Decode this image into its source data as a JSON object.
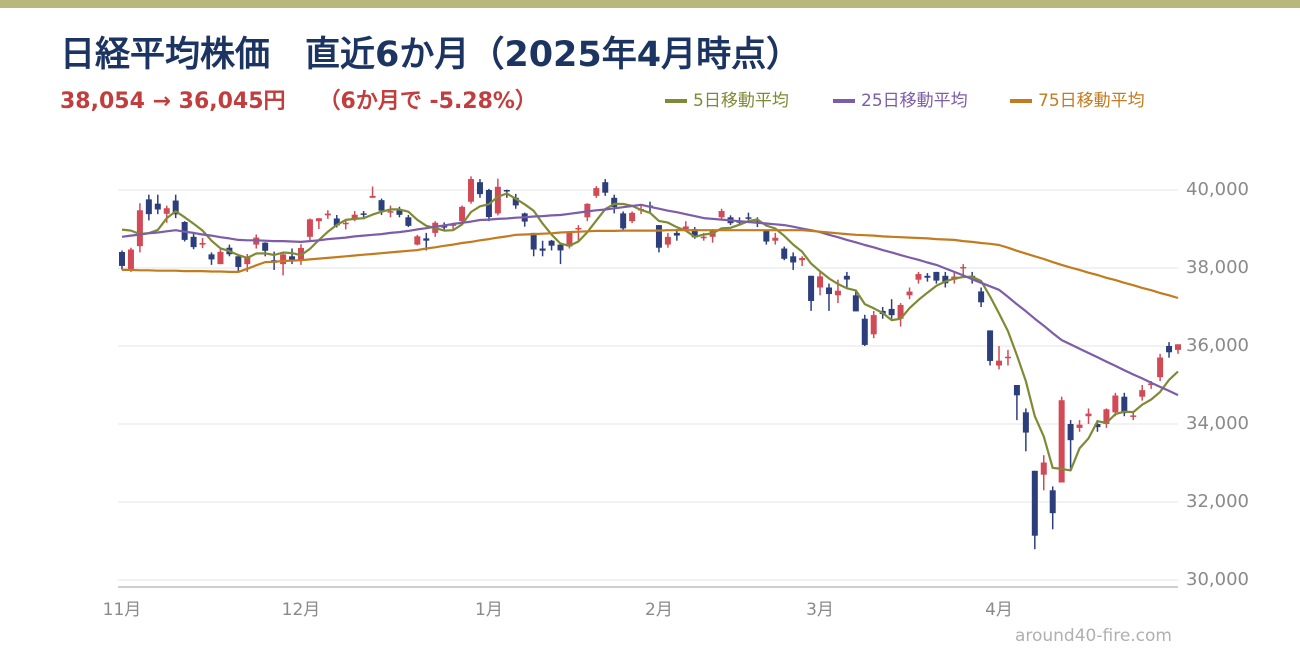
{
  "chart_data": {
    "type": "candlestick",
    "title": "日経平均株価　直近6か月（2025年4月時点）",
    "subtitle": "38,054 → 36,045円　　（6か月で -5.28%）",
    "source": "around40-fire.com",
    "categories": [
      "11月",
      null,
      null,
      null,
      null,
      null,
      null,
      null,
      null,
      null,
      null,
      null,
      null,
      null,
      null,
      null,
      null,
      null,
      null,
      null,
      "12月",
      null,
      null,
      null,
      null,
      null,
      null,
      null,
      null,
      null,
      null,
      null,
      null,
      null,
      null,
      null,
      null,
      null,
      null,
      null,
      null,
      "1月",
      null,
      null,
      null,
      null,
      null,
      null,
      null,
      null,
      null,
      null,
      null,
      null,
      null,
      null,
      null,
      null,
      null,
      null,
      "2月",
      null,
      null,
      null,
      null,
      null,
      null,
      null,
      null,
      null,
      null,
      null,
      null,
      null,
      null,
      null,
      null,
      null,
      "3月",
      null,
      null,
      null,
      null,
      null,
      null,
      null,
      null,
      null,
      null,
      null,
      null,
      null,
      null,
      null,
      null,
      null,
      null,
      null,
      "4月",
      null,
      null,
      null,
      null,
      null,
      null,
      null,
      null,
      null,
      null,
      null,
      null,
      null,
      null,
      null,
      null,
      null,
      null,
      null,
      null
    ],
    "open": [
      38410,
      37950,
      38560,
      39760,
      39650,
      39390,
      39730,
      39180,
      38800,
      38600,
      38350,
      38100,
      38520,
      38300,
      38100,
      38600,
      38650,
      38200,
      38100,
      38300,
      38180,
      38800,
      39200,
      39350,
      39270,
      39140,
      39250,
      39400,
      39800,
      39740,
      39450,
      39500,
      39300,
      38600,
      38760,
      38900,
      39100,
      39080,
      39200,
      39700,
      40200,
      40000,
      39400,
      40000,
      39800,
      39400,
      38900,
      38500,
      38700,
      38600,
      38550,
      39000,
      39300,
      39850,
      40200,
      39800,
      39400,
      39200,
      39500,
      39600,
      39100,
      38600,
      38900,
      39000,
      39000,
      38800,
      38800,
      39300,
      39300,
      39200,
      39300,
      39200,
      38950,
      38700,
      38500,
      38300,
      38200,
      37800,
      37500,
      37500,
      37300,
      37800,
      37300,
      36700,
      36300,
      36900,
      36950,
      36700,
      37300,
      37700,
      37800,
      37900,
      37800,
      37700,
      38000,
      37800,
      37400,
      36400,
      35500,
      35700,
      35000,
      34300,
      32800,
      32700,
      32300,
      32500,
      34000,
      33900,
      34200,
      34000,
      34000,
      34300,
      34700,
      34200,
      34700,
      35000,
      35200,
      36000,
      35900
    ],
    "high": [
      38450,
      38520,
      39660,
      39880,
      39880,
      39600,
      39880,
      39200,
      38900,
      38770,
      38400,
      38490,
      38600,
      38360,
      38360,
      38860,
      38660,
      38420,
      38420,
      38500,
      38610,
      39270,
      39280,
      39480,
      39360,
      39250,
      39460,
      39460,
      40090,
      39780,
      39600,
      39570,
      39360,
      38850,
      38900,
      39200,
      39170,
      39160,
      39600,
      40350,
      40280,
      40030,
      40290,
      40010,
      39900,
      39420,
      38900,
      38700,
      38720,
      38650,
      38920,
      39100,
      39660,
      40100,
      40280,
      39880,
      39450,
      39450,
      39630,
      39700,
      39100,
      38900,
      39000,
      39200,
      39050,
      38900,
      39000,
      39520,
      39350,
      39300,
      39420,
      39300,
      38980,
      38900,
      38550,
      38400,
      38300,
      37800,
      37900,
      37600,
      37700,
      37900,
      37400,
      36800,
      36900,
      37000,
      37200,
      37100,
      37500,
      37900,
      37870,
      37900,
      37900,
      37900,
      38100,
      37900,
      37500,
      36400,
      36000,
      35900,
      35000,
      34400,
      32800,
      33200,
      32400,
      34700,
      34100,
      34100,
      34400,
      34100,
      34400,
      34800,
      34800,
      34300,
      35000,
      35100,
      35800,
      36100,
      36000
    ],
    "low": [
      37960,
      37900,
      38400,
      39220,
      39380,
      39160,
      39280,
      38680,
      38480,
      38510,
      38080,
      38100,
      38300,
      37890,
      37900,
      38500,
      38300,
      37950,
      37810,
      38100,
      38080,
      38700,
      39000,
      39260,
      39040,
      38990,
      39200,
      39250,
      39800,
      39360,
      39300,
      39300,
      39050,
      38580,
      38450,
      38800,
      38960,
      38980,
      39180,
      39650,
      39800,
      39200,
      39350,
      39800,
      39520,
      39060,
      38300,
      38300,
      38450,
      38100,
      38500,
      38700,
      39200,
      39800,
      39850,
      39400,
      38950,
      39150,
      39380,
      39400,
      38400,
      38520,
      38700,
      38950,
      38750,
      38700,
      38650,
      39250,
      39100,
      39100,
      39200,
      39050,
      38600,
      38600,
      38200,
      37950,
      38050,
      36900,
      37300,
      36900,
      37100,
      37500,
      36900,
      36000,
      36200,
      36700,
      36700,
      36500,
      37200,
      37600,
      37650,
      37600,
      37500,
      37600,
      37800,
      37600,
      37000,
      35500,
      35400,
      35500,
      34100,
      33300,
      30790,
      32300,
      31300,
      32500,
      32800,
      33800,
      34000,
      33800,
      33900,
      34200,
      34200,
      34100,
      34600,
      34900,
      35100,
      35700,
      35800
    ],
    "close": [
      38053,
      38474,
      39480,
      39381,
      39500,
      39533,
      39376,
      38721,
      38535,
      38642,
      38220,
      38414,
      38352,
      38026,
      38283,
      38780,
      38442,
      38134,
      38349,
      38208,
      38513,
      39248,
      39276,
      39395,
      39091,
      39160,
      39367,
      39372,
      39849,
      39470,
      39457,
      39364,
      39081,
      38813,
      38701,
      39161,
      39036,
      39130,
      39568,
      40281,
      39894,
      39307,
      40083,
      39981,
      39605,
      39190,
      38474,
      38444,
      38572,
      38451,
      38902,
      39027,
      39646,
      40049,
      39931,
      39565,
      39016,
      39414,
      39513,
      39572,
      38520,
      38798,
      38831,
      39066,
      38787,
      38801,
      38963,
      39461,
      39149,
      39174,
      39270,
      39164,
      38678,
      38776,
      38237,
      38142,
      38256,
      37155,
      37785,
      37331,
      37418,
      37704,
      36887,
      36028,
      36793,
      36819,
      36790,
      37053,
      37396,
      37845,
      37751,
      37677,
      37608,
      37780,
      38027,
      37799,
      37120,
      35617,
      35624,
      35725,
      34735,
      33780,
      31136,
      33012,
      31714,
      34609,
      33585,
      33982,
      34267,
      33920,
      34377,
      34730,
      34279,
      34220,
      34868,
      35039,
      35705,
      35839,
      36045
    ],
    "up_color": "#d24a56",
    "down_color": "#2c3f7c",
    "series": [
      {
        "name": "5日移動平均",
        "color": "#7f8a34",
        "values": [
          38984,
          38958,
          38873,
          38894,
          38978,
          39274,
          39454,
          39302,
          39133,
          38961,
          38699,
          38506,
          38433,
          38331,
          38259,
          38371,
          38377,
          38333,
          38398,
          38383,
          38329,
          38490,
          38719,
          38928,
          39105,
          39234,
          39258,
          39277,
          39368,
          39444,
          39503,
          39502,
          39444,
          39237,
          39083,
          39024,
          38958,
          38968,
          39119,
          39435,
          39582,
          39636,
          39827,
          39909,
          39774,
          39633,
          39467,
          39139,
          38857,
          38626,
          38569,
          38679,
          38920,
          39215,
          39511,
          39644,
          39641,
          39595,
          39488,
          39416,
          39207,
          39163,
          39047,
          38957,
          38800,
          38857,
          38890,
          39016,
          39032,
          39110,
          39203,
          39244,
          39087,
          39012,
          38825,
          38599,
          38418,
          38113,
          37915,
          37734,
          37589,
          37479,
          37425,
          37074,
          36966,
          36846,
          36663,
          36697,
          36970,
          37181,
          37367,
          37544,
          37655,
          37732,
          37769,
          37778,
          37667,
          37269,
          36837,
          36377,
          35764,
          35096,
          34200,
          33678,
          32875,
          32850,
          32811,
          33380,
          33631,
          34073,
          34026,
          34255,
          34315,
          34305,
          34495,
          34627,
          34822,
          35134,
          35345
        ]
      },
      {
        "name": "25日移動平均",
        "color": "#7d5ca8",
        "values": [
          38800,
          38830,
          38860,
          38890,
          38910,
          38940,
          38970,
          38930,
          38900,
          38860,
          38830,
          38790,
          38760,
          38720,
          38710,
          38710,
          38700,
          38690,
          38690,
          38680,
          38670,
          38690,
          38710,
          38740,
          38760,
          38780,
          38810,
          38830,
          38850,
          38870,
          38900,
          38920,
          38950,
          38990,
          39020,
          39060,
          39090,
          39130,
          39160,
          39190,
          39230,
          39240,
          39260,
          39270,
          39290,
          39300,
          39320,
          39330,
          39350,
          39360,
          39390,
          39420,
          39450,
          39480,
          39500,
          39530,
          39560,
          39590,
          39620,
          39570,
          39520,
          39470,
          39430,
          39380,
          39330,
          39280,
          39260,
          39240,
          39220,
          39200,
          39180,
          39160,
          39140,
          39120,
          39100,
          39060,
          39010,
          38970,
          38920,
          38850,
          38790,
          38720,
          38660,
          38590,
          38530,
          38460,
          38400,
          38330,
          38270,
          38210,
          38140,
          38080,
          37990,
          37900,
          37810,
          37710,
          37620,
          37530,
          37440,
          37260,
          37070,
          36890,
          36700,
          36520,
          36330,
          36150,
          36040,
          35930,
          35820,
          35710,
          35600,
          35490,
          35380,
          35270,
          35170,
          35060,
          34950,
          34850,
          34740
        ]
      },
      {
        "name": "75日移動平均",
        "color": "#c27b1f",
        "values": [
          37950,
          37950,
          37940,
          37940,
          37930,
          37930,
          37930,
          37920,
          37920,
          37920,
          37910,
          37910,
          37900,
          37900,
          37980,
          38070,
          38150,
          38160,
          38180,
          38190,
          38200,
          38220,
          38240,
          38260,
          38280,
          38300,
          38320,
          38340,
          38360,
          38380,
          38400,
          38420,
          38440,
          38460,
          38500,
          38530,
          38570,
          38600,
          38640,
          38670,
          38710,
          38740,
          38780,
          38810,
          38850,
          38860,
          38870,
          38880,
          38890,
          38910,
          38920,
          38930,
          38940,
          38950,
          38950,
          38950,
          38960,
          38960,
          38960,
          38960,
          38960,
          38970,
          38970,
          38970,
          38970,
          38970,
          38970,
          38970,
          38970,
          38970,
          38970,
          38970,
          38970,
          38970,
          38970,
          38970,
          38970,
          38950,
          38930,
          38910,
          38890,
          38870,
          38850,
          38840,
          38830,
          38810,
          38800,
          38790,
          38780,
          38770,
          38760,
          38740,
          38730,
          38720,
          38690,
          38670,
          38640,
          38620,
          38590,
          38520,
          38440,
          38370,
          38300,
          38230,
          38150,
          38080,
          38010,
          37950,
          37880,
          37820,
          37750,
          37690,
          37620,
          37560,
          37490,
          37430,
          37360,
          37300,
          37230
        ]
      }
    ],
    "ylim": [
      30000,
      41000
    ],
    "yticks": [
      {
        "value": 30000,
        "label": "30,000"
      },
      {
        "value": 32000,
        "label": "32,000"
      },
      {
        "value": 34000,
        "label": "34,000"
      },
      {
        "value": 36000,
        "label": "36,000"
      },
      {
        "value": 38000,
        "label": "38,000"
      },
      {
        "value": 40000,
        "label": "40,000"
      }
    ],
    "grid": true
  }
}
